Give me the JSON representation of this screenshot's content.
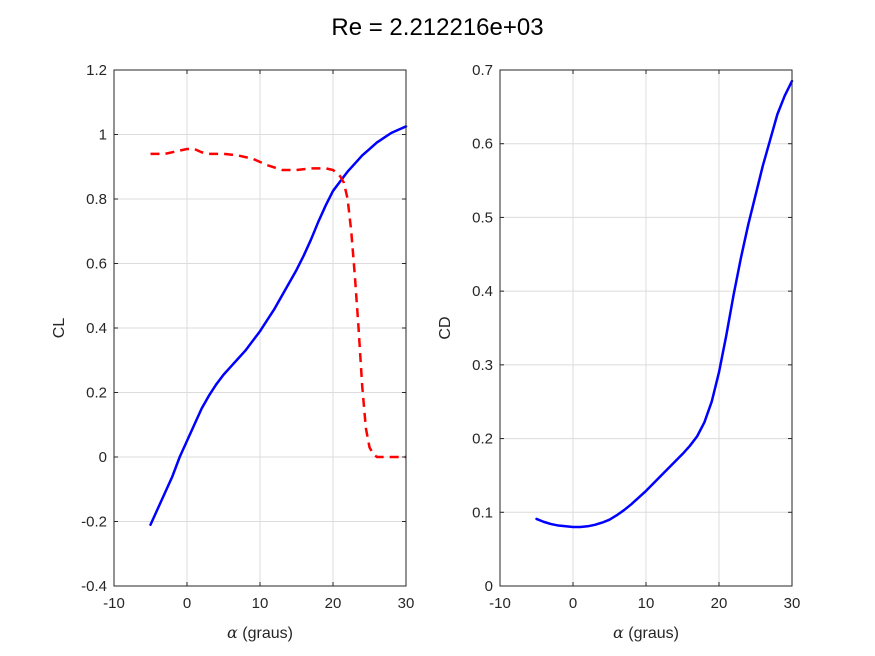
{
  "figure": {
    "title": "Re = 2.212216e+03"
  },
  "chart_data": [
    {
      "type": "line",
      "xlabel_symbol": "α",
      "xlabel_text": " (graus)",
      "ylabel": "CL",
      "xlim": [
        -10,
        30
      ],
      "ylim": [
        -0.4,
        1.2
      ],
      "xticks": [
        -10,
        0,
        10,
        20,
        30
      ],
      "yticks": [
        -0.4,
        -0.2,
        0,
        0.2,
        0.4,
        0.6,
        0.8,
        1,
        1.2
      ],
      "xtick_labels": [
        "-10",
        "0",
        "10",
        "20",
        "30"
      ],
      "ytick_labels": [
        "-0.4",
        "-0.2",
        "0",
        "0.2",
        "0.4",
        "0.6",
        "0.8",
        "1",
        "1.2"
      ],
      "grid": true,
      "series": [
        {
          "color": "#0000ff",
          "style": "solid",
          "x": [
            -5,
            -4,
            -3,
            -2,
            -1,
            0,
            1,
            2,
            3,
            4,
            5,
            6,
            7,
            8,
            9,
            10,
            11,
            12,
            13,
            14,
            15,
            16,
            17,
            18,
            19,
            20,
            21,
            22,
            23,
            24,
            25,
            26,
            27,
            28,
            29,
            30
          ],
          "y": [
            -0.21,
            -0.16,
            -0.11,
            -0.06,
            0.0,
            0.05,
            0.1,
            0.15,
            0.19,
            0.225,
            0.255,
            0.28,
            0.305,
            0.33,
            0.36,
            0.39,
            0.425,
            0.46,
            0.5,
            0.54,
            0.58,
            0.625,
            0.675,
            0.73,
            0.78,
            0.825,
            0.855,
            0.885,
            0.91,
            0.935,
            0.955,
            0.975,
            0.99,
            1.005,
            1.015,
            1.025
          ]
        },
        {
          "color": "#ff0000",
          "style": "dashed",
          "x": [
            -5,
            -3,
            -1,
            0,
            1,
            2,
            3,
            5,
            7,
            9,
            11,
            13,
            15,
            17,
            19,
            20,
            21,
            21.5,
            22,
            22.5,
            23,
            23.5,
            24,
            24.5,
            25,
            25.5,
            26,
            27,
            28,
            29,
            30
          ],
          "y": [
            0.94,
            0.94,
            0.95,
            0.955,
            0.955,
            0.945,
            0.94,
            0.94,
            0.935,
            0.925,
            0.905,
            0.89,
            0.89,
            0.895,
            0.895,
            0.89,
            0.87,
            0.85,
            0.8,
            0.7,
            0.56,
            0.4,
            0.22,
            0.09,
            0.03,
            0.01,
            0.0,
            0.0,
            0.0,
            0.0,
            0.0
          ]
        }
      ]
    },
    {
      "type": "line",
      "xlabel_symbol": "α",
      "xlabel_text": " (graus)",
      "ylabel": "CD",
      "xlim": [
        -10,
        30
      ],
      "ylim": [
        0,
        0.7
      ],
      "xticks": [
        -10,
        0,
        10,
        20,
        30
      ],
      "yticks": [
        0,
        0.1,
        0.2,
        0.3,
        0.4,
        0.5,
        0.6,
        0.7
      ],
      "xtick_labels": [
        "-10",
        "0",
        "10",
        "20",
        "30"
      ],
      "ytick_labels": [
        "0",
        "0.1",
        "0.2",
        "0.3",
        "0.4",
        "0.5",
        "0.6",
        "0.7"
      ],
      "grid": true,
      "series": [
        {
          "color": "#0000ff",
          "style": "solid",
          "x": [
            -5,
            -4,
            -3,
            -2,
            -1,
            0,
            1,
            2,
            3,
            4,
            5,
            6,
            7,
            8,
            9,
            10,
            11,
            12,
            13,
            14,
            15,
            16,
            17,
            18,
            19,
            20,
            21,
            22,
            23,
            24,
            25,
            26,
            27,
            28,
            29,
            30
          ],
          "y": [
            0.091,
            0.087,
            0.084,
            0.082,
            0.081,
            0.08,
            0.08,
            0.081,
            0.083,
            0.086,
            0.09,
            0.096,
            0.103,
            0.111,
            0.12,
            0.129,
            0.139,
            0.149,
            0.159,
            0.169,
            0.179,
            0.19,
            0.203,
            0.222,
            0.25,
            0.29,
            0.34,
            0.395,
            0.445,
            0.49,
            0.53,
            0.57,
            0.605,
            0.64,
            0.665,
            0.685
          ]
        }
      ]
    }
  ]
}
